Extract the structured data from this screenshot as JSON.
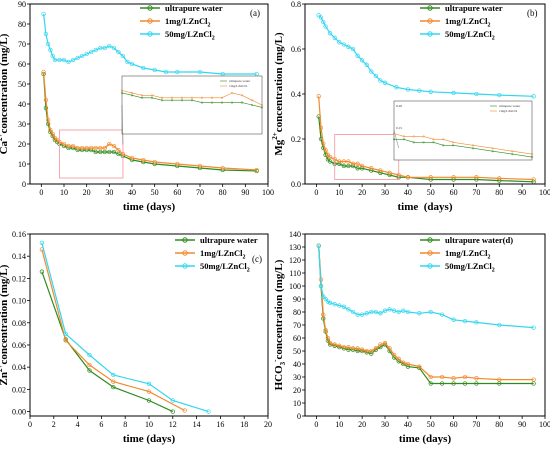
{
  "colors": {
    "ultrapure": "#2e8b1e",
    "c1mg": "#f28a2e",
    "c50mg": "#33d6f0",
    "zoom_box": "#f2a0a0",
    "axis": "#000000"
  },
  "chart_data": [
    {
      "id": "a",
      "type": "line",
      "panel_tag": "(a)",
      "xlabel": "time (days)",
      "ylabel_main": "Ca",
      "ylabel_sup": "2+",
      "ylabel_rest": "concentration (mg/L)",
      "xlim": [
        -5,
        100
      ],
      "ylim": [
        0,
        90
      ],
      "xticks": [
        0,
        10,
        20,
        30,
        40,
        50,
        60,
        70,
        80,
        90,
        100
      ],
      "yticks": [
        0,
        10,
        20,
        30,
        40,
        50,
        60,
        70,
        80,
        90
      ],
      "legend_position": "top-right",
      "series": [
        {
          "name": "ultrapure water",
          "color_key": "ultrapure",
          "x": [
            1,
            2,
            3,
            4,
            5,
            6,
            7,
            8,
            10,
            12,
            14,
            16,
            18,
            20,
            22,
            24,
            26,
            28,
            30,
            32,
            34,
            36,
            40,
            45,
            50,
            60,
            70,
            80,
            95
          ],
          "y": [
            55,
            38,
            30,
            26,
            24,
            22,
            21,
            20,
            19,
            18,
            18,
            17,
            17,
            17,
            17,
            16,
            16,
            16,
            16,
            16,
            15,
            14,
            12,
            11,
            10,
            9,
            8,
            7,
            6.5
          ]
        },
        {
          "name": "1mg/LZnCl2",
          "color_key": "c1mg",
          "x": [
            1,
            2,
            3,
            4,
            5,
            6,
            7,
            8,
            10,
            12,
            14,
            16,
            18,
            20,
            22,
            24,
            26,
            28,
            30,
            32,
            34,
            36,
            40,
            45,
            50,
            60,
            70,
            80,
            95
          ],
          "y": [
            56,
            42,
            32,
            27,
            25,
            23,
            22,
            21,
            20,
            19,
            19,
            18,
            18,
            18,
            18,
            18,
            18,
            18,
            20,
            19,
            17,
            15,
            13,
            12,
            11,
            10,
            9,
            8,
            7
          ]
        },
        {
          "name": "50mg/LZnCl2",
          "color_key": "c50mg",
          "x": [
            1,
            2,
            3,
            4,
            5,
            6,
            8,
            10,
            12,
            14,
            16,
            18,
            20,
            22,
            24,
            26,
            28,
            30,
            32,
            34,
            36,
            38,
            40,
            45,
            50,
            55,
            60,
            70,
            80,
            95
          ],
          "y": [
            85,
            75,
            70,
            67,
            64,
            62,
            62,
            62,
            61,
            62,
            63,
            64,
            65,
            66,
            67,
            68,
            68,
            69,
            68,
            66,
            64,
            61,
            60,
            58,
            57,
            56,
            56,
            56,
            55,
            55
          ]
        }
      ],
      "legend_labels": [
        {
          "main": "ultrapure water",
          "sub": ""
        },
        {
          "main": "1mg/LZnCl",
          "sub": "2"
        },
        {
          "main": "50mg/LZnCl",
          "sub": "2"
        }
      ],
      "zoom": {
        "x0": 8,
        "x1": 36,
        "y0": 3,
        "y1": 27
      },
      "inset": {
        "legend": [
          "ultrapure water",
          "1mg/LZnCl2"
        ]
      }
    },
    {
      "id": "b",
      "type": "line",
      "panel_tag": "(b)",
      "xlabel": "time  (days)",
      "ylabel_main": "Mg",
      "ylabel_sup": "2+",
      "ylabel_rest": "concentration (mg/L)",
      "xlim": [
        -5,
        100
      ],
      "ylim": [
        0,
        0.8
      ],
      "xticks": [
        0,
        10,
        20,
        30,
        40,
        50,
        60,
        70,
        80,
        90,
        100
      ],
      "yticks": [
        0.0,
        0.2,
        0.4,
        0.6,
        0.8
      ],
      "ytick_labels": [
        "0.0",
        "0.2",
        "0.4",
        "0.6",
        "0.8"
      ],
      "legend_position": "top-right",
      "series": [
        {
          "name": "ultrapure water",
          "color_key": "ultrapure",
          "x": [
            1,
            2,
            3,
            4,
            5,
            6,
            8,
            10,
            12,
            14,
            16,
            18,
            20,
            24,
            28,
            32,
            36,
            40,
            50,
            60,
            70,
            80,
            95
          ],
          "y": [
            0.3,
            0.2,
            0.16,
            0.13,
            0.11,
            0.1,
            0.09,
            0.09,
            0.08,
            0.08,
            0.08,
            0.07,
            0.07,
            0.06,
            0.05,
            0.04,
            0.03,
            0.03,
            0.02,
            0.02,
            0.02,
            0.015,
            0.01
          ]
        },
        {
          "name": "1mg/LZnCl2",
          "color_key": "c1mg",
          "x": [
            1,
            2,
            3,
            4,
            5,
            6,
            8,
            10,
            12,
            14,
            16,
            18,
            20,
            24,
            28,
            32,
            36,
            40,
            50,
            60,
            70,
            80,
            95
          ],
          "y": [
            0.39,
            0.25,
            0.18,
            0.15,
            0.13,
            0.12,
            0.11,
            0.1,
            0.1,
            0.1,
            0.09,
            0.09,
            0.08,
            0.07,
            0.06,
            0.05,
            0.04,
            0.03,
            0.03,
            0.03,
            0.03,
            0.025,
            0.02
          ]
        },
        {
          "name": "50mg/LZnCl2",
          "color_key": "c50mg",
          "x": [
            1,
            2,
            3,
            4,
            6,
            8,
            10,
            12,
            14,
            16,
            18,
            20,
            22,
            24,
            26,
            28,
            30,
            35,
            40,
            45,
            50,
            60,
            70,
            80,
            95
          ],
          "y": [
            0.75,
            0.74,
            0.72,
            0.7,
            0.67,
            0.65,
            0.63,
            0.62,
            0.61,
            0.6,
            0.57,
            0.55,
            0.53,
            0.5,
            0.48,
            0.46,
            0.45,
            0.43,
            0.42,
            0.415,
            0.41,
            0.405,
            0.4,
            0.395,
            0.39
          ]
        }
      ],
      "legend_labels": [
        {
          "main": "ultrapure water",
          "sub": ""
        },
        {
          "main": "1mg/LZnCl",
          "sub": "2"
        },
        {
          "main": "50mg/LZnCl",
          "sub": "2"
        }
      ],
      "zoom": {
        "x0": 8,
        "x1": 36,
        "y0": 0.02,
        "y1": 0.22
      },
      "inset": {
        "legend": [
          "ultrapure water",
          "1mg/LZnCl2"
        ],
        "tick_top": "0.20",
        "tick_mid": "0.15"
      }
    },
    {
      "id": "c",
      "type": "line",
      "panel_tag": "(c)",
      "xlabel": "time (days)",
      "ylabel_main": "Zn",
      "ylabel_sup": "2+",
      "ylabel_rest": "concentration (mg/L)",
      "xlim": [
        0,
        20
      ],
      "ylim": [
        -0.004,
        0.16
      ],
      "xticks": [
        0,
        2,
        4,
        6,
        8,
        10,
        12,
        14,
        16,
        18,
        20
      ],
      "yticks": [
        0.0,
        0.02,
        0.04,
        0.06,
        0.08,
        0.1,
        0.12,
        0.14,
        0.16
      ],
      "ytick_labels": [
        "0.00",
        "0.02",
        "0.04",
        "0.06",
        "0.08",
        "0.10",
        "0.12",
        "0.14",
        "0.16"
      ],
      "legend_position": "top-right",
      "series": [
        {
          "name": "ultrapure water",
          "color_key": "ultrapure",
          "x": [
            1,
            3,
            5,
            7,
            10,
            12
          ],
          "y": [
            0.126,
            0.065,
            0.037,
            0.022,
            0.01,
            0.0
          ]
        },
        {
          "name": "1mg/LZnCl2",
          "color_key": "c1mg",
          "x": [
            1,
            3,
            5,
            7,
            10,
            13
          ],
          "y": [
            0.146,
            0.064,
            0.042,
            0.027,
            0.018,
            0.001
          ]
        },
        {
          "name": "50mg/LZnCl2",
          "color_key": "c50mg",
          "x": [
            1,
            3,
            5,
            7,
            10,
            12,
            15
          ],
          "y": [
            0.152,
            0.07,
            0.051,
            0.033,
            0.025,
            0.01,
            0.0
          ]
        }
      ],
      "legend_labels": [
        {
          "main": "ultrapure water",
          "sub": ""
        },
        {
          "main": "1mg/LZnCl",
          "sub": "2"
        },
        {
          "main": "50mg/LZnCl",
          "sub": "2"
        }
      ]
    },
    {
      "id": "d",
      "type": "line",
      "panel_tag": "(d)",
      "xlabel": "time (days)",
      "ylabel_main": "HCO",
      "ylabel_sub": "3",
      "ylabel_sup": "-",
      "ylabel_rest": "concentration (mg/L)",
      "xlim": [
        -5,
        100
      ],
      "ylim": [
        0,
        140
      ],
      "xticks": [
        0,
        10,
        20,
        30,
        40,
        50,
        60,
        70,
        80,
        90,
        100
      ],
      "yticks": [
        0,
        10,
        20,
        30,
        40,
        50,
        60,
        70,
        80,
        90,
        100,
        110,
        120,
        130,
        140
      ],
      "legend_position": "top-right",
      "series": [
        {
          "name": "ultrapure water",
          "color_key": "ultrapure",
          "x": [
            1,
            2,
            3,
            4,
            5,
            6,
            8,
            10,
            12,
            14,
            16,
            18,
            20,
            22,
            24,
            26,
            28,
            30,
            32,
            34,
            36,
            38,
            40,
            45,
            50,
            55,
            60,
            65,
            70,
            80,
            95
          ],
          "y": [
            131,
            100,
            75,
            65,
            58,
            55,
            54,
            53,
            52,
            51,
            51,
            50,
            50,
            49,
            48,
            51,
            53,
            55,
            50,
            45,
            42,
            40,
            38,
            37,
            25,
            25,
            25,
            25,
            25,
            25,
            25
          ]
        },
        {
          "name": "1mg/LZnCl2",
          "color_key": "c1mg",
          "x": [
            1,
            2,
            3,
            4,
            5,
            6,
            8,
            10,
            12,
            14,
            16,
            18,
            20,
            22,
            24,
            26,
            28,
            30,
            32,
            34,
            36,
            38,
            40,
            45,
            50,
            55,
            60,
            65,
            70,
            80,
            95
          ],
          "y": [
            131,
            105,
            78,
            66,
            60,
            56,
            55,
            54,
            53,
            53,
            52,
            52,
            51,
            50,
            50,
            52,
            55,
            56,
            52,
            47,
            44,
            41,
            40,
            38,
            30,
            30,
            29,
            30,
            29,
            28,
            28
          ]
        },
        {
          "name": "50mg/LZnCl2",
          "color_key": "c50mg",
          "x": [
            1,
            2,
            3,
            4,
            5,
            6,
            8,
            10,
            12,
            14,
            16,
            18,
            20,
            22,
            24,
            26,
            28,
            30,
            32,
            34,
            36,
            38,
            40,
            45,
            50,
            55,
            60,
            65,
            70,
            80,
            95
          ],
          "y": [
            131,
            100,
            92,
            90,
            88,
            87,
            86,
            85,
            84,
            82,
            80,
            78,
            78,
            79,
            80,
            80,
            79,
            81,
            82,
            81,
            80,
            81,
            80,
            79,
            80,
            78,
            74,
            73,
            72,
            70,
            68
          ]
        }
      ],
      "legend_labels": [
        {
          "main": "ultrapure water(d)",
          "sub": ""
        },
        {
          "main": "1mg/LZnCl",
          "sub": "2"
        },
        {
          "main": "50mg/LZnCl",
          "sub": "2"
        }
      ]
    }
  ]
}
